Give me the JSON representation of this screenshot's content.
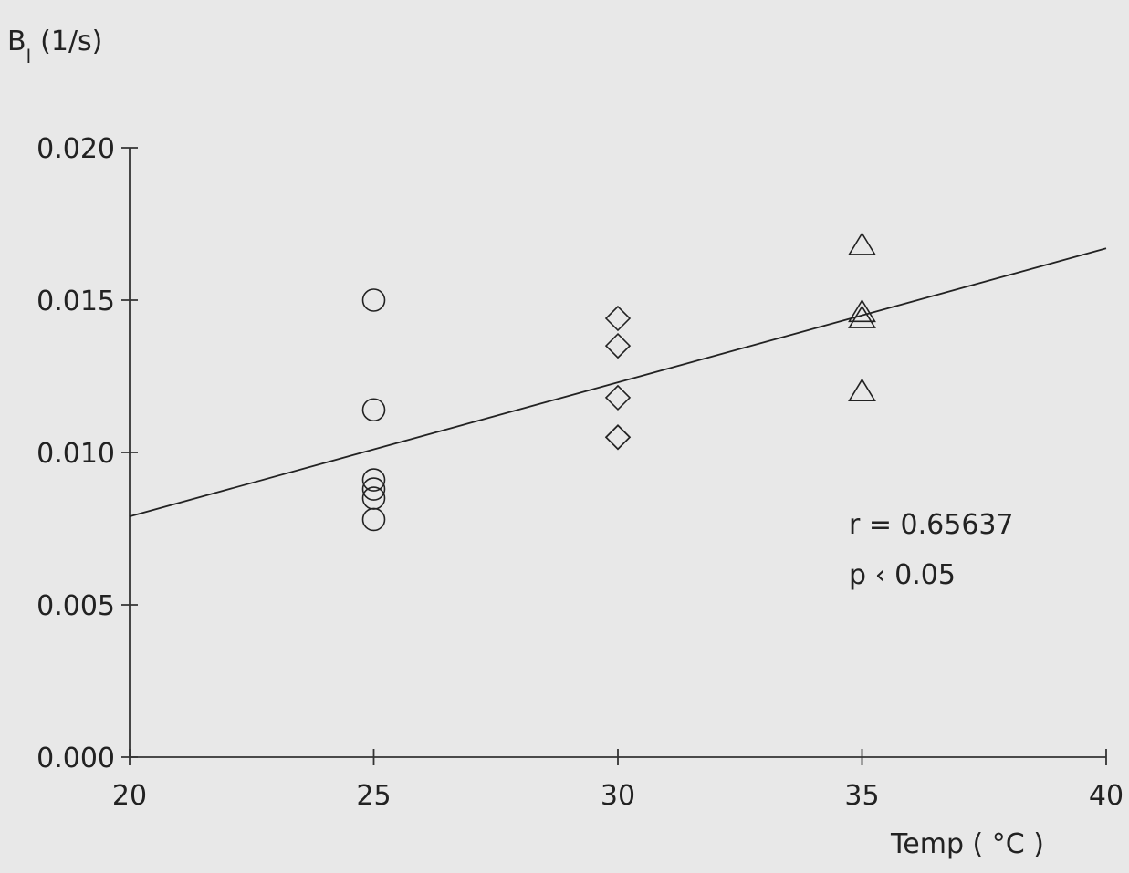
{
  "chart_data": {
    "type": "scatter",
    "xlabel": "Temp ( °C )",
    "ylabel_main": "B",
    "ylabel_sub": "l",
    "ylabel_unit": "(1/s)",
    "xlim": [
      20,
      40
    ],
    "ylim": [
      0,
      0.02
    ],
    "x_ticks": [
      "20",
      "25",
      "30",
      "35",
      "40"
    ],
    "x_tick_values": [
      20,
      25,
      30,
      35,
      40
    ],
    "y_ticks": [
      "0.000",
      "0.005",
      "0.010",
      "0.015",
      "0.020"
    ],
    "y_tick_values": [
      0,
      0.005,
      0.01,
      0.015,
      0.02
    ],
    "grid": false,
    "series": [
      {
        "marker": "circle",
        "x": [
          25,
          25,
          25,
          25,
          25,
          25
        ],
        "y": [
          0.015,
          0.0114,
          0.0091,
          0.0088,
          0.0085,
          0.0078
        ]
      },
      {
        "marker": "diamond",
        "x": [
          30,
          30,
          30,
          30,
          30
        ],
        "y": [
          0.0144,
          0.0135,
          0.0118,
          0.0105,
          0.0105
        ]
      },
      {
        "marker": "triangle",
        "x": [
          35,
          35,
          35,
          35
        ],
        "y": [
          0.0168,
          0.0146,
          0.0144,
          0.012
        ]
      }
    ],
    "regression_line": {
      "x": [
        20,
        40
      ],
      "y": [
        0.0079,
        0.0167
      ]
    },
    "annotations": [
      "r = 0.65637",
      "p ‹ 0.05"
    ]
  }
}
